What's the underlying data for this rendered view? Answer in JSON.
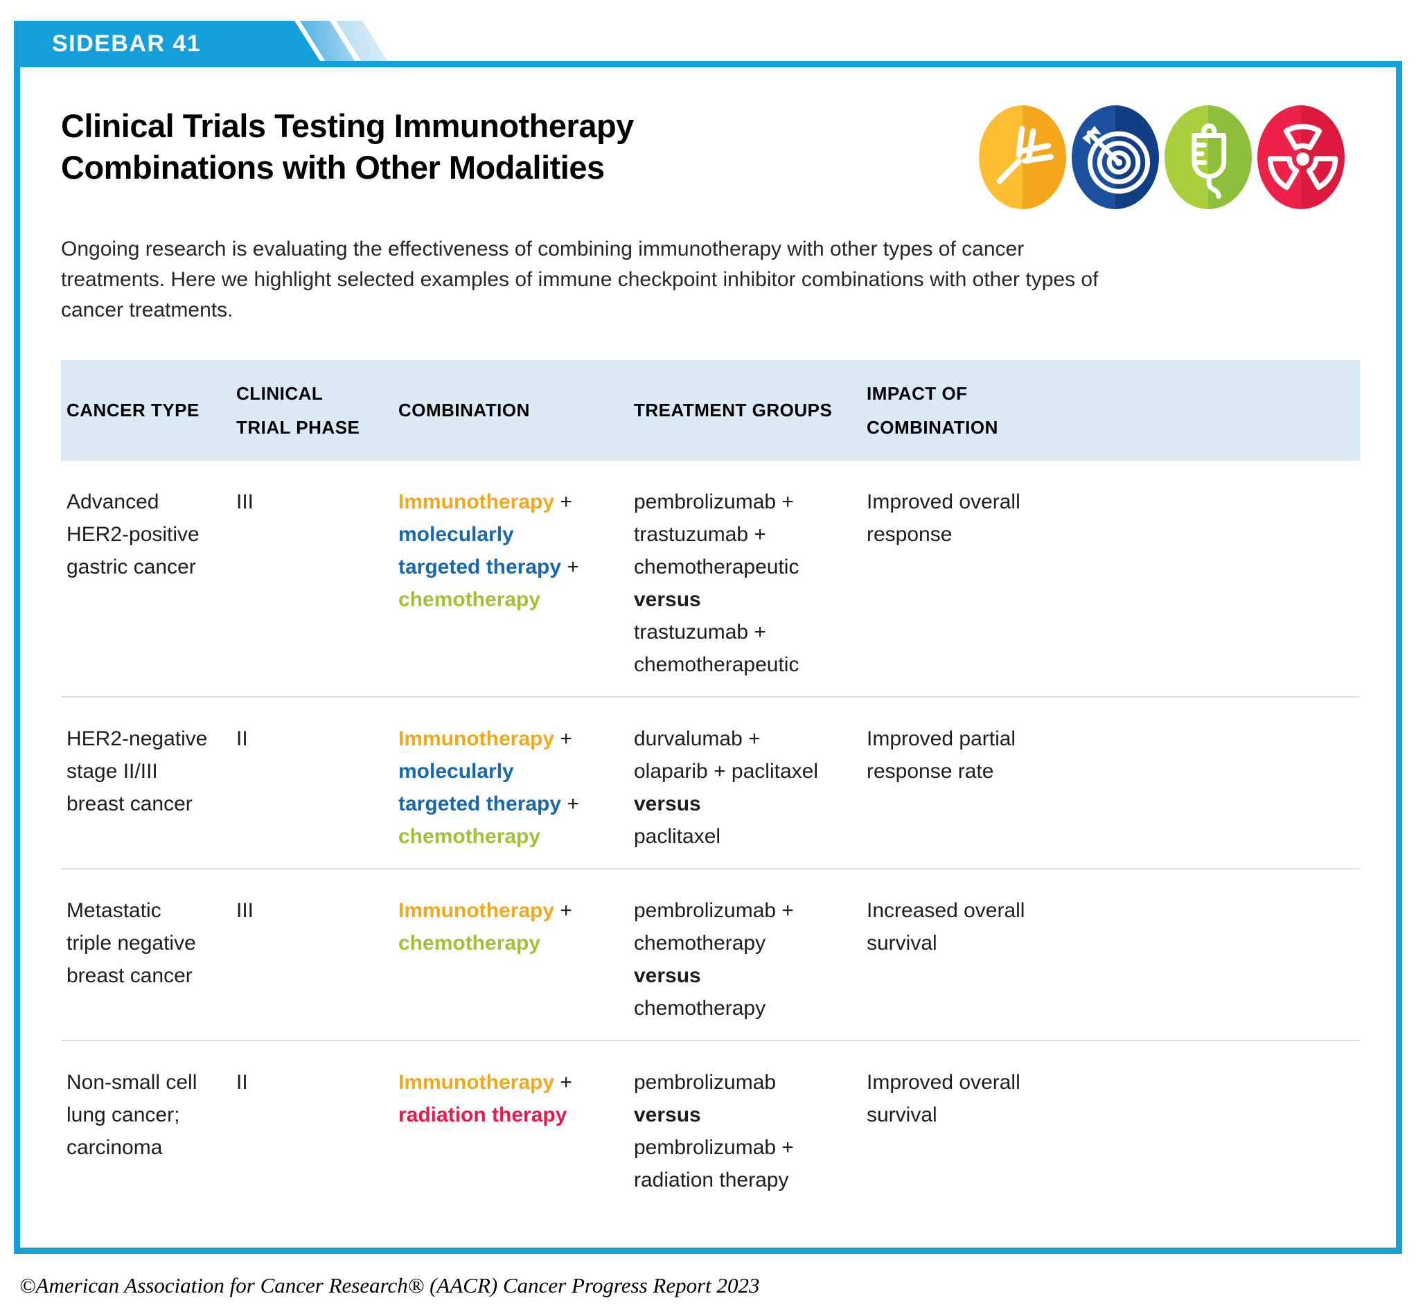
{
  "tab_label": "SIDEBAR 41",
  "title_lines": "Clinical Trials Testing Immunotherapy\nCombinations with Other Modalities",
  "intro_text": "Ongoing research is evaluating the effectiveness of combining immunotherapy with other types of cancer\ntreatments. Here we highlight selected examples of immune checkpoint inhibitor combinations with other types of\ncancer treatments.",
  "footer_text": "©American Association for Cancer Research® (AACR) Cancer Progress Report 2023",
  "accent_color": "#149FDA",
  "header_bg_color": "#dbe9f5",
  "colors": {
    "immuno": "#EFA91E",
    "targeted": "#1668B0",
    "chemo": "#A2C037",
    "radiation": "#E91A4B",
    "plain": "#1d1d1b"
  },
  "icons": [
    {
      "name": "antibody-icon",
      "meaning": "immunotherapy",
      "left": "#FDBE33",
      "right": "#F4A71D"
    },
    {
      "name": "target-icon",
      "meaning": "molecularly targeted therapy",
      "left": "#1C509E",
      "right": "#123E85"
    },
    {
      "name": "iv-bag-icon",
      "meaning": "chemotherapy",
      "left": "#A8CE3B",
      "right": "#8DC03A"
    },
    {
      "name": "radiation-icon",
      "meaning": "radiation therapy",
      "left": "#EE2149",
      "right": "#DB1A3E"
    }
  ],
  "table": {
    "headers": [
      {
        "lines": [
          "CANCER TYPE"
        ]
      },
      {
        "lines": [
          "CLINICAL",
          "TRIAL PHASE"
        ]
      },
      {
        "lines": [
          "COMBINATION"
        ]
      },
      {
        "lines": [
          "TREATMENT GROUPS"
        ]
      },
      {
        "lines": [
          "IMPACT OF",
          "COMBINATION"
        ]
      }
    ],
    "rows": [
      {
        "cancer_type": [
          "Advanced",
          "HER2-positive",
          "gastric cancer"
        ],
        "phase": "III",
        "combination": [
          [
            {
              "t": "Immunotherapy",
              "c": "immuno"
            },
            {
              "t": " +",
              "c": "plain"
            }
          ],
          [
            {
              "t": "molecularly",
              "c": "targeted"
            }
          ],
          [
            {
              "t": "targeted therapy",
              "c": "targeted"
            },
            {
              "t": " +",
              "c": "plain"
            }
          ],
          [
            {
              "t": "chemotherapy",
              "c": "chemo"
            }
          ]
        ],
        "treatment_groups": [
          {
            "t": "pembrolizumab +"
          },
          {
            "t": "trastuzumab +"
          },
          {
            "t": "chemotherapeutic"
          },
          {
            "t": "versus",
            "bold": true
          },
          {
            "t": "trastuzumab +"
          },
          {
            "t": "chemotherapeutic"
          }
        ],
        "impact": [
          "Improved overall",
          "response"
        ]
      },
      {
        "cancer_type": [
          "HER2-negative",
          "stage II/III",
          "breast cancer"
        ],
        "phase": "II",
        "combination": [
          [
            {
              "t": "Immunotherapy",
              "c": "immuno"
            },
            {
              "t": " +",
              "c": "plain"
            }
          ],
          [
            {
              "t": "molecularly",
              "c": "targeted"
            }
          ],
          [
            {
              "t": "targeted therapy",
              "c": "targeted"
            },
            {
              "t": " +",
              "c": "plain"
            }
          ],
          [
            {
              "t": "chemotherapy",
              "c": "chemo"
            }
          ]
        ],
        "treatment_groups": [
          {
            "t": "durvalumab +"
          },
          {
            "t": "olaparib + paclitaxel"
          },
          {
            "t": "versus",
            "bold": true
          },
          {
            "t": "paclitaxel"
          }
        ],
        "impact": [
          "Improved partial",
          "response rate"
        ]
      },
      {
        "cancer_type": [
          "Metastatic",
          "triple negative",
          "breast cancer"
        ],
        "phase": "III",
        "combination": [
          [
            {
              "t": "Immunotherapy",
              "c": "immuno"
            },
            {
              "t": " +",
              "c": "plain"
            }
          ],
          [
            {
              "t": "chemotherapy",
              "c": "chemo"
            }
          ]
        ],
        "treatment_groups": [
          {
            "t": "pembrolizumab +"
          },
          {
            "t": "chemotherapy"
          },
          {
            "t": "versus",
            "bold": true
          },
          {
            "t": "chemotherapy"
          }
        ],
        "impact": [
          "Increased overall",
          "survival"
        ]
      },
      {
        "cancer_type": [
          "Non-small cell",
          "lung cancer;",
          "carcinoma"
        ],
        "phase": "II",
        "combination": [
          [
            {
              "t": "Immunotherapy",
              "c": "immuno"
            },
            {
              "t": " +",
              "c": "plain"
            }
          ],
          [
            {
              "t": "radiation therapy",
              "c": "radiation"
            }
          ]
        ],
        "treatment_groups": [
          {
            "t": "pembrolizumab"
          },
          {
            "t": "versus",
            "bold": true
          },
          {
            "t": "pembrolizumab +"
          },
          {
            "t": "radiation therapy"
          }
        ],
        "impact": [
          "Improved overall",
          "survival"
        ]
      }
    ]
  }
}
